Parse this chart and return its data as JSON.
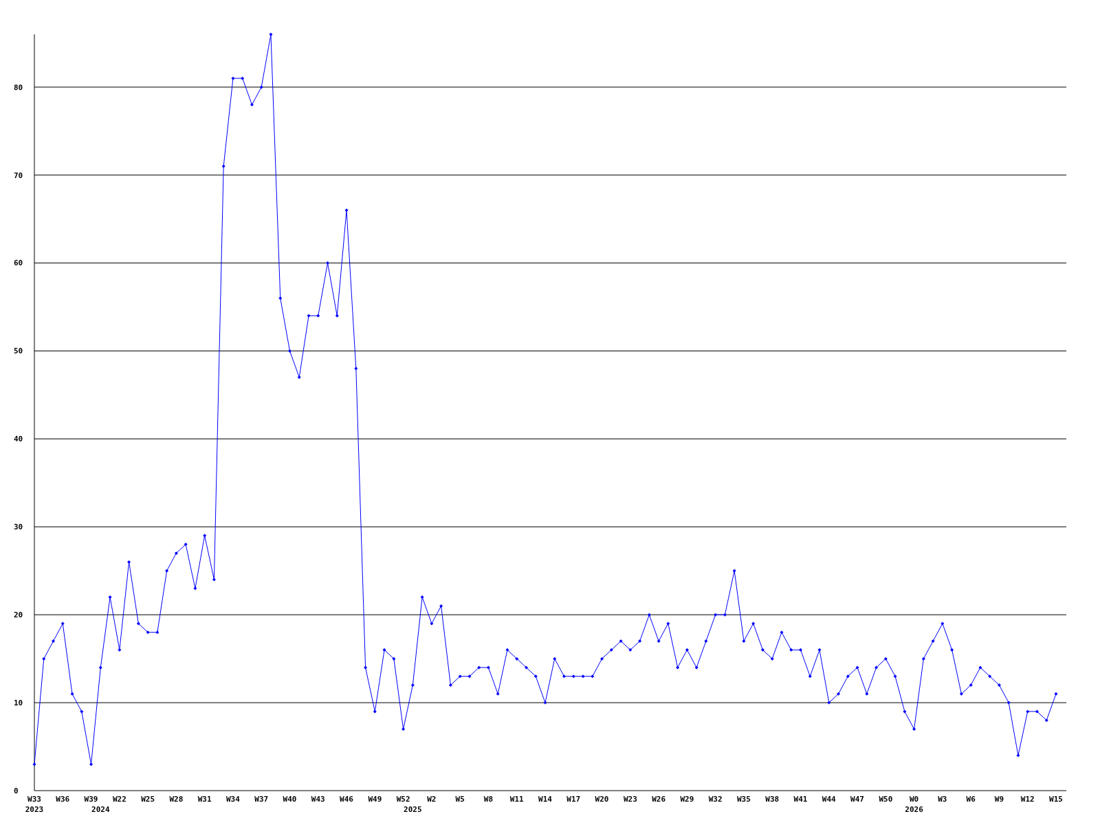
{
  "chart_data": {
    "type": "line",
    "categories": [
      "W33\n2023",
      null,
      null,
      "W36",
      null,
      null,
      "W39",
      "\n2024",
      null,
      "W22",
      null,
      null,
      "W25",
      null,
      null,
      "W28",
      null,
      null,
      "W31",
      null,
      null,
      "W34",
      null,
      null,
      "W37",
      null,
      null,
      "W40",
      null,
      null,
      "W43",
      null,
      null,
      "W46",
      null,
      null,
      "W49",
      null,
      null,
      "W52",
      "\n2025",
      null,
      "W2",
      null,
      null,
      "W5",
      null,
      null,
      "W8",
      null,
      null,
      "W11",
      null,
      null,
      "W14",
      null,
      null,
      "W17",
      null,
      null,
      "W20",
      null,
      null,
      "W23",
      null,
      null,
      "W26",
      null,
      null,
      "W29",
      null,
      null,
      "W32",
      null,
      null,
      "W35",
      null,
      null,
      "W38",
      null,
      null,
      "W41",
      null,
      null,
      "W44",
      null,
      null,
      "W47",
      null,
      null,
      "W50",
      null,
      null,
      "W0\n2026",
      null,
      null,
      "W3",
      null,
      null,
      "W6",
      null,
      null,
      "W9",
      null,
      null,
      "W12",
      null,
      null,
      "W15"
    ],
    "series": [
      {
        "color": "#0000ff",
        "values": [
          3,
          15,
          17,
          19,
          11,
          9,
          3,
          14,
          22,
          16,
          26,
          19,
          18,
          18,
          25,
          27,
          28,
          23,
          29,
          24,
          71,
          81,
          81,
          78,
          80,
          86,
          56,
          50,
          47,
          54,
          54,
          60,
          54,
          66,
          48,
          14,
          9,
          16,
          15,
          7,
          12,
          22,
          19,
          21,
          12,
          13,
          13,
          14,
          14,
          11,
          16,
          15,
          14,
          13,
          10,
          15,
          13,
          13,
          13,
          13,
          15,
          16,
          17,
          16,
          17,
          20,
          17,
          19,
          14,
          16,
          14,
          17,
          20,
          20,
          25,
          17,
          19,
          16,
          15,
          18,
          16,
          16,
          13,
          16,
          10,
          11,
          13,
          14,
          11,
          14,
          15,
          13,
          9,
          7,
          15,
          17,
          19,
          16,
          11,
          12,
          14,
          13,
          12,
          10,
          4,
          9,
          9,
          8,
          11
        ]
      }
    ],
    "ylim": [
      0,
      86
    ],
    "yticks": [
      0,
      10,
      20,
      30,
      40,
      50,
      60,
      70,
      80
    ],
    "grid": "y",
    "marker": "diamond",
    "line_style": "solid"
  }
}
